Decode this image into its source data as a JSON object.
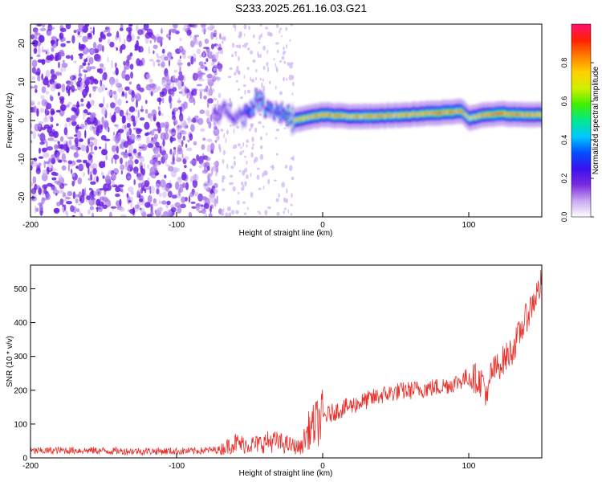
{
  "title": "S233.2025.261.16.03.G21",
  "chart_data": [
    {
      "type": "heatmap",
      "xlabel": "Height of straight line (km)",
      "ylabel": "Frequency (Hz)",
      "xlim": [
        -200,
        150
      ],
      "ylim": [
        -25,
        25
      ],
      "x_ticks": [
        -200,
        -100,
        0,
        100
      ],
      "y_ticks": [
        20,
        10,
        0,
        -10,
        -20
      ],
      "colorbar": {
        "label": "Normalized spectral amplitude",
        "range": [
          0,
          1
        ],
        "ticks": [
          0.0,
          0.2,
          0.4,
          0.6,
          0.8
        ],
        "tick_labels": [
          "0.0",
          "0.2",
          "0.4",
          "0.6",
          "0.8"
        ],
        "colormap": [
          "#ffffff",
          "#c9a8f0",
          "#7a2ae0",
          "#3a10f0",
          "#0050ff",
          "#00c8ff",
          "#00e890",
          "#40f000",
          "#d0f000",
          "#ffd000",
          "#ff8000",
          "#ff2000",
          "#ff1070"
        ]
      },
      "noise_region": {
        "x": [
          -200,
          -70
        ],
        "amplitude": 0.2
      },
      "transition_region": {
        "x": [
          -75,
          -20
        ],
        "amplitude": 0.35
      },
      "ridge": {
        "x": [
          -75,
          -65,
          -55,
          -45,
          -40,
          -35,
          -28,
          -20,
          -10,
          0,
          20,
          40,
          60,
          80,
          95,
          100,
          110,
          120,
          135,
          150
        ],
        "freq": [
          1.5,
          2.5,
          1.0,
          5.5,
          4.0,
          3.0,
          2.0,
          0.0,
          0.8,
          1.5,
          1.0,
          1.2,
          1.5,
          2.0,
          2.5,
          0.5,
          1.5,
          1.8,
          1.5,
          1.5
        ],
        "peak_amplitude": [
          0.25,
          0.3,
          0.35,
          0.45,
          0.5,
          0.4,
          0.45,
          0.75,
          0.8,
          0.85,
          0.8,
          0.85,
          0.8,
          0.9,
          0.85,
          0.75,
          0.8,
          0.9,
          0.85,
          0.8
        ]
      }
    },
    {
      "type": "line",
      "xlabel": "Height of straight line (km)",
      "ylabel": "SNR (10 * v/v)",
      "xlim": [
        -200,
        150
      ],
      "ylim": [
        0,
        570
      ],
      "x_ticks": [
        -200,
        -100,
        0,
        100
      ],
      "y_ticks": [
        0,
        100,
        200,
        300,
        400,
        500
      ],
      "color": "#e8312c",
      "series": [
        {
          "x": [
            -200,
            -180,
            -160,
            -140,
            -120,
            -100,
            -90,
            -80,
            -70,
            -65,
            -60,
            -55,
            -50,
            -45,
            -40,
            -35,
            -30,
            -25,
            -20,
            -15,
            -10,
            -5,
            0,
            10,
            20,
            30,
            40,
            50,
            60,
            70,
            80,
            90,
            100,
            105,
            108,
            110,
            113,
            115,
            120,
            130,
            140,
            150
          ],
          "y": [
            20,
            22,
            22,
            20,
            20,
            20,
            20,
            22,
            25,
            35,
            45,
            40,
            40,
            40,
            45,
            50,
            45,
            40,
            35,
            30,
            80,
            100,
            120,
            140,
            155,
            170,
            185,
            195,
            200,
            205,
            210,
            220,
            240,
            235,
            225,
            230,
            165,
            250,
            270,
            320,
            420,
            520
          ]
        }
      ]
    }
  ]
}
